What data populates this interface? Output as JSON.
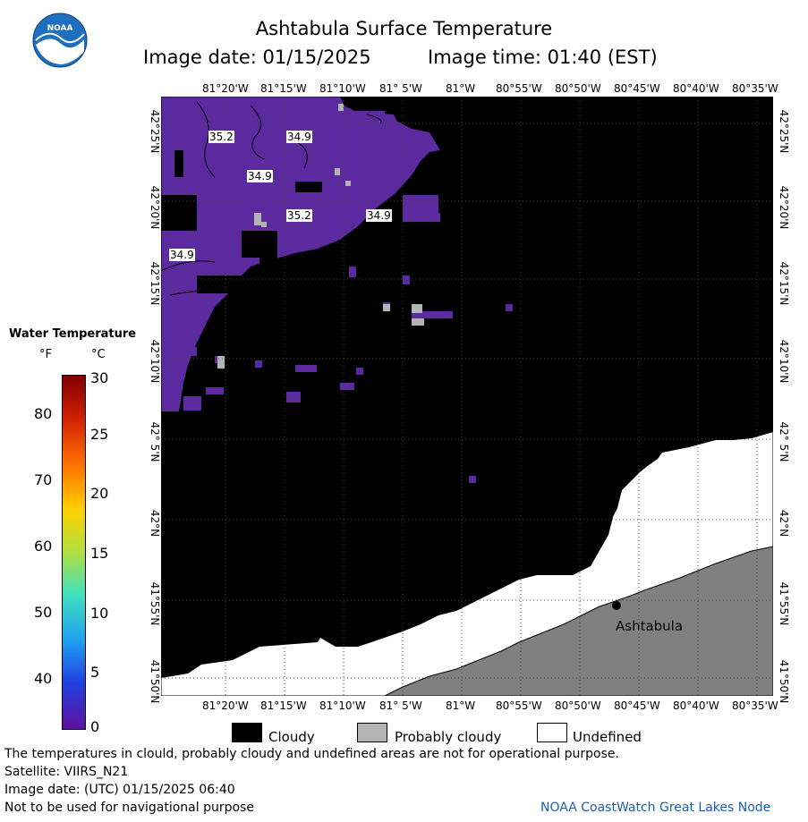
{
  "header": {
    "title": "Ashtabula Surface Temperature",
    "image_date": "Image date: 01/15/2025",
    "image_time": "Image time: 01:40 (EST)",
    "logo_text": "NOAA"
  },
  "map": {
    "lon_labels": [
      "81°20'W",
      "81°15'W",
      "81°10'W",
      "81° 5'W",
      "81°W",
      "80°55'W",
      "80°50'W",
      "80°45'W",
      "80°40'W",
      "80°35'W"
    ],
    "lat_labels": [
      "42°25'N",
      "42°20'N",
      "42°15'N",
      "42°10'N",
      "42° 5'N",
      "42°N",
      "41°55'N",
      "41°50'N"
    ],
    "temp_labels": [
      "35.2",
      "34.9",
      "34.9",
      "35.2",
      "34.9",
      "34.9"
    ],
    "city": "Ashtabula",
    "colors": {
      "water_cold": "#5a2a9e",
      "cloudy": "#000000",
      "probably_cloudy": "#b4b4b4",
      "undefined": "#ffffff",
      "land": "#808080"
    }
  },
  "colorbar": {
    "title": "Water Temperature",
    "unit_f": "°F",
    "unit_c": "°C",
    "f_ticks": [
      "80",
      "70",
      "60",
      "50",
      "40"
    ],
    "c_ticks": [
      "30",
      "25",
      "20",
      "15",
      "10",
      "5",
      "0"
    ]
  },
  "legend": {
    "cloudy": "Cloudy",
    "probably_cloudy": "Probably cloudy",
    "undefined": "Undefined"
  },
  "footer": {
    "disclaimer": "The temperatures in clould, probably cloudy and undefined areas are not for operational purpose.",
    "satellite": "Satellite: VIIRS_N21",
    "utc_date": "Image date: (UTC) 01/15/2025  06:40",
    "nav_warning": "Not to be used for navigational purpose",
    "credit": "NOAA CoastWatch Great Lakes Node"
  }
}
